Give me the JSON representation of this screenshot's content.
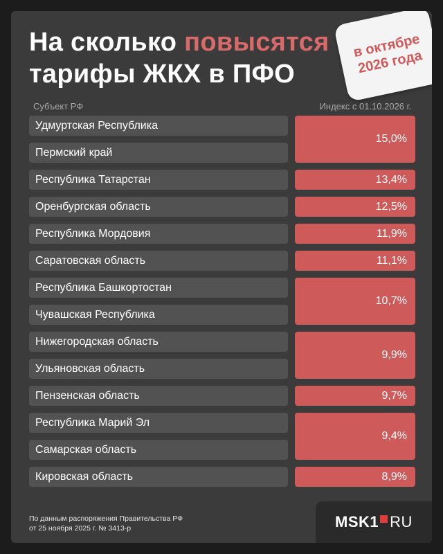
{
  "title": {
    "line1_start": "На сколько ",
    "line1_accent": "повысятся",
    "line2": "тарифы ЖКХ в ПФО"
  },
  "badge": {
    "text": "в октябре 2026 года"
  },
  "table": {
    "header_subject": "Субъект РФ",
    "header_index": "Индекс с 01.10.2026 г.",
    "rows": [
      "Удмуртская Республика",
      "Пермский край",
      "Республика Татарстан",
      "Оренбургская область",
      "Республика Мордовия",
      "Саратовская область",
      "Республика Башкортостан",
      "Чувашская Республика",
      "Нижегородская область",
      "Ульяновская область",
      "Пензенская область",
      "Республика Марий Эл",
      "Самарская область",
      "Кировская область"
    ],
    "values": [
      "15,0%",
      "13,4%",
      "12,5%",
      "11,9%",
      "11,1%",
      "10,7%",
      "9,9%",
      "9,7%",
      "9,4%",
      "8,9%"
    ]
  },
  "footer": {
    "line1": "По данным распоряжения Правительства РФ",
    "line2": "от 25 ноября 2025 г. № 3413-р"
  },
  "logo": {
    "left": "MSK1",
    "right": "RU"
  }
}
